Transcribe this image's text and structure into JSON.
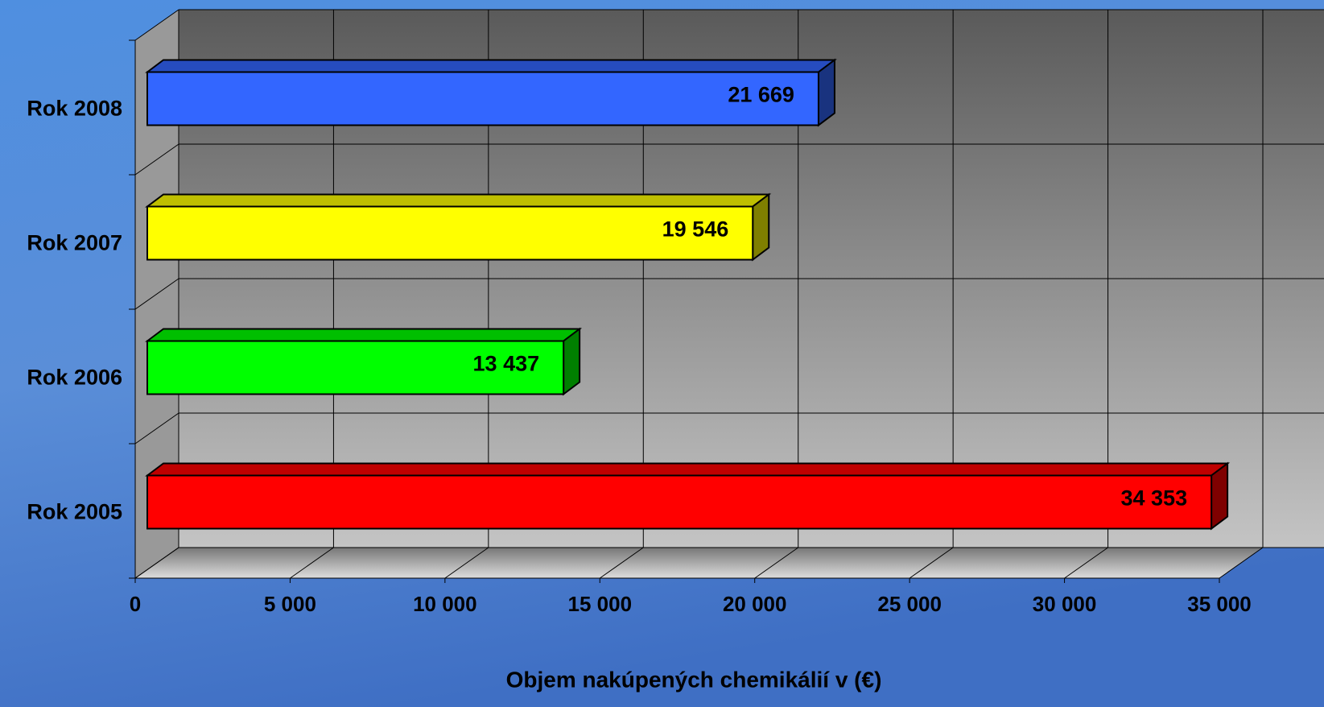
{
  "chart_data": {
    "type": "bar3d",
    "x_label": "Objem nakúpených chemikálií v (€)",
    "categories": [
      "Rok 2005",
      "Rok 2006",
      "Rok 2007",
      "Rok 2008"
    ],
    "values": [
      34353,
      13437,
      19546,
      21669
    ],
    "value_labels": [
      "34 353",
      "13 437",
      "19 546",
      "21 669"
    ],
    "colors": [
      "#ff0000",
      "#00ff00",
      "#ffff00",
      "#3366ff"
    ],
    "xlim": [
      0,
      35000
    ],
    "xticks": [
      0,
      {
        "value": 5000,
        "label": "5 000"
      },
      {
        "value": 10000,
        "label": "10 000"
      },
      {
        "value": 15000,
        "label": "15 000"
      },
      {
        "value": 20000,
        "label": "20 000"
      },
      {
        "value": 25000,
        "label": "25 000"
      },
      {
        "value": 30000,
        "label": "30 000"
      },
      {
        "value": 35000,
        "label": "35 000"
      }
    ],
    "grid": true
  }
}
